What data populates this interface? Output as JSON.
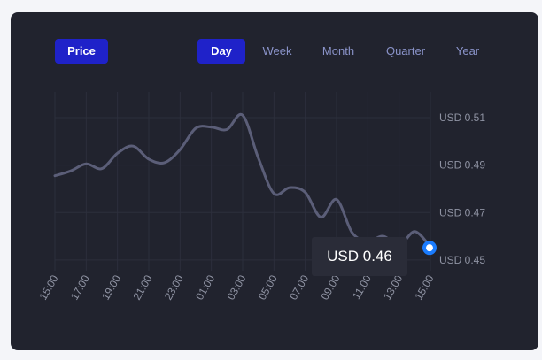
{
  "controls": {
    "metric_button": "Price",
    "periods": [
      "Day",
      "Week",
      "Month",
      "Quarter",
      "Year"
    ],
    "active_period": "Day"
  },
  "tooltip": {
    "text": "USD 0.46"
  },
  "colors": {
    "card_bg": "#21232e",
    "line": "#5b5e78",
    "active_button": "#1f22c9",
    "inactive_tab_text": "#8a93c9",
    "marker": "#1a7cff",
    "grid": "#2c2f3c",
    "tick_text": "#8f93a3"
  },
  "chart_data": {
    "type": "line",
    "title": "",
    "xlabel": "",
    "ylabel": "",
    "x_ticks": [
      "15:00",
      "17:00",
      "19:00",
      "21:00",
      "23:00",
      "01:00",
      "03:00",
      "05:00",
      "07:00",
      "09:00",
      "11:00",
      "13:00",
      "15:00"
    ],
    "y_ticks": [
      "USD 0.51",
      "USD 0.49",
      "USD 0.47",
      "USD 0.45"
    ],
    "ylim": [
      0.4455,
      0.5208
    ],
    "grid": true,
    "series": [
      {
        "x": [
          0,
          0.5,
          1,
          1.5,
          2,
          2.5,
          3,
          3.5,
          4,
          4.5,
          5,
          5.5,
          6,
          6.5,
          7,
          7.5,
          8,
          8.5,
          9,
          9.5,
          10,
          10.5,
          11,
          11.5,
          12
        ],
        "values": [
          0.4855,
          0.4875,
          0.4905,
          0.4885,
          0.495,
          0.498,
          0.4925,
          0.491,
          0.4965,
          0.5055,
          0.506,
          0.505,
          0.511,
          0.493,
          0.478,
          0.4805,
          0.4785,
          0.468,
          0.4755,
          0.4615,
          0.458,
          0.46,
          0.456,
          0.462,
          0.4555
        ]
      }
    ]
  }
}
